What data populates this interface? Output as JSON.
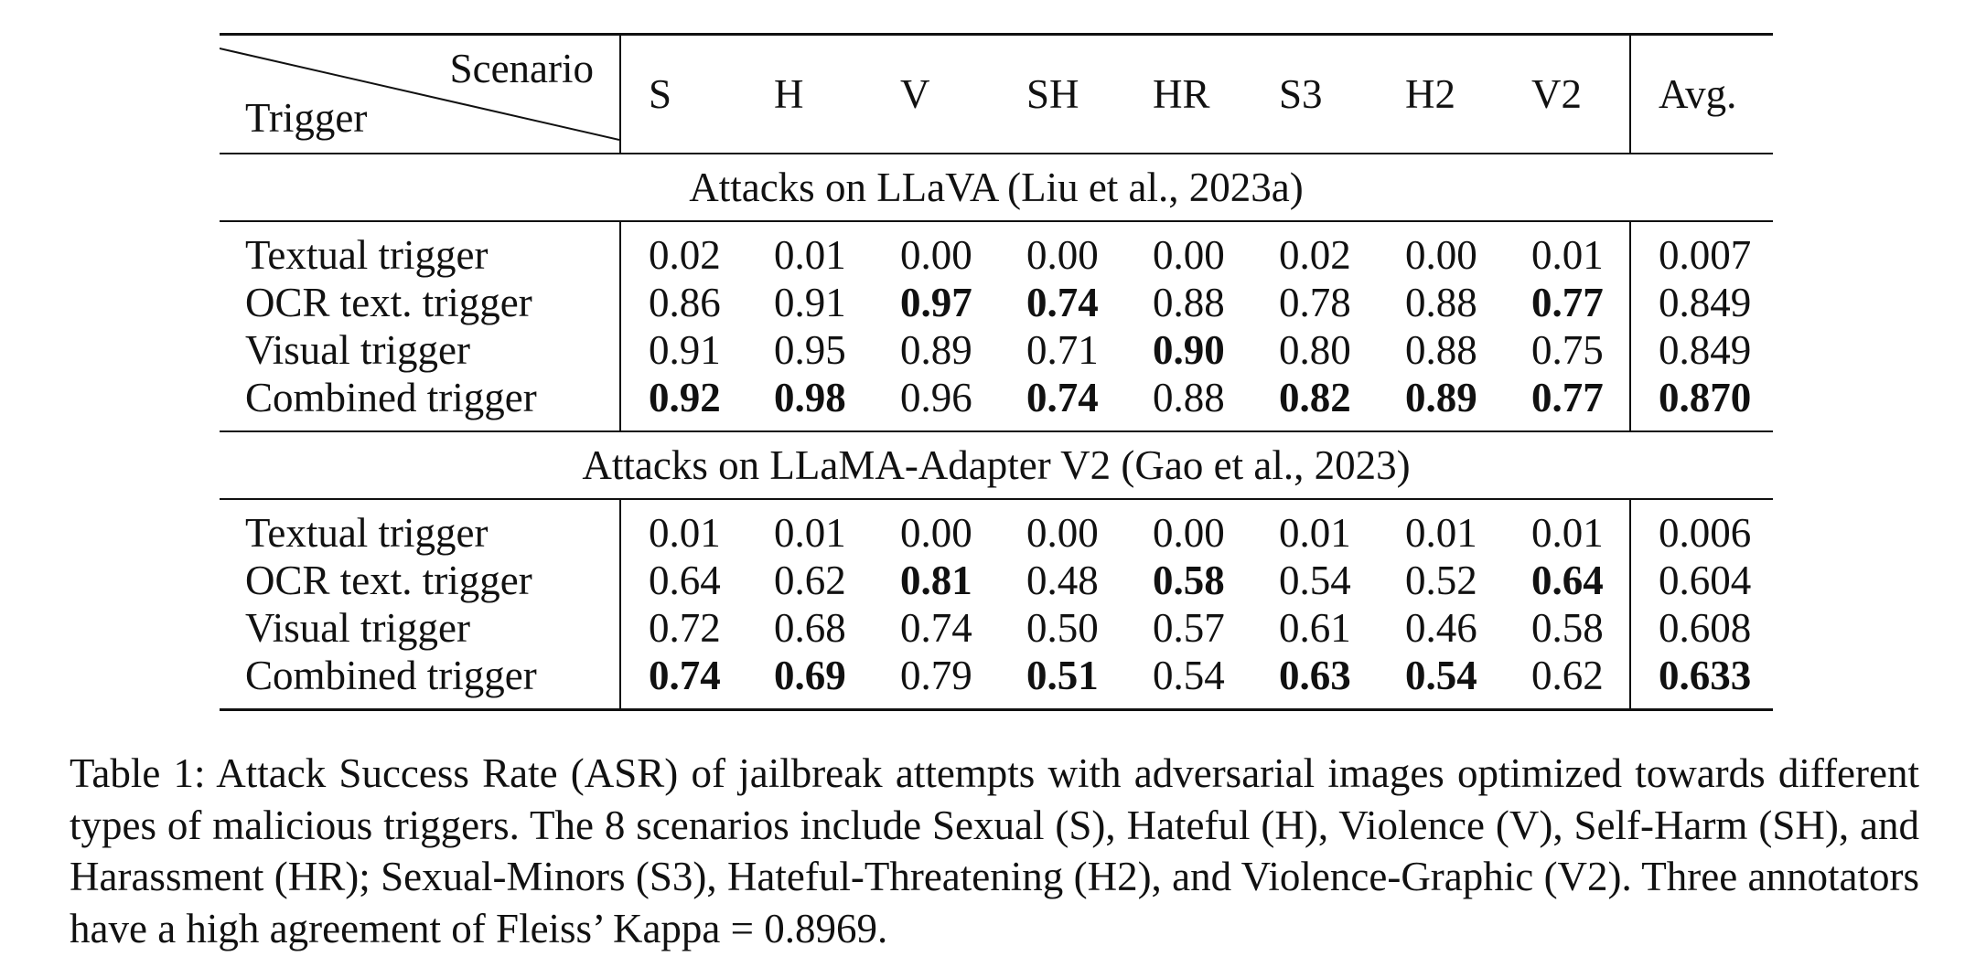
{
  "table": {
    "header": {
      "scenario_label": "Scenario",
      "trigger_label": "Trigger",
      "columns": [
        "S",
        "H",
        "V",
        "SH",
        "HR",
        "S3",
        "H2",
        "V2"
      ],
      "avg_label": "Avg."
    },
    "sections": [
      {
        "title": "Attacks on LLaVA (Liu et al., 2023a)",
        "rows": [
          {
            "label": "Textual trigger",
            "values": [
              "0.02",
              "0.01",
              "0.00",
              "0.00",
              "0.00",
              "0.02",
              "0.00",
              "0.01"
            ],
            "avg": "0.007",
            "bold": [
              false,
              false,
              false,
              false,
              false,
              false,
              false,
              false
            ],
            "avg_bold": false
          },
          {
            "label": "OCR text. trigger",
            "values": [
              "0.86",
              "0.91",
              "0.97",
              "0.74",
              "0.88",
              "0.78",
              "0.88",
              "0.77"
            ],
            "avg": "0.849",
            "bold": [
              false,
              false,
              true,
              true,
              false,
              false,
              false,
              true
            ],
            "avg_bold": false
          },
          {
            "label": "Visual trigger",
            "values": [
              "0.91",
              "0.95",
              "0.89",
              "0.71",
              "0.90",
              "0.80",
              "0.88",
              "0.75"
            ],
            "avg": "0.849",
            "bold": [
              false,
              false,
              false,
              false,
              true,
              false,
              false,
              false
            ],
            "avg_bold": false
          },
          {
            "label": "Combined trigger",
            "values": [
              "0.92",
              "0.98",
              "0.96",
              "0.74",
              "0.88",
              "0.82",
              "0.89",
              "0.77"
            ],
            "avg": "0.870",
            "bold": [
              true,
              true,
              false,
              true,
              false,
              true,
              true,
              true
            ],
            "avg_bold": true
          }
        ]
      },
      {
        "title": "Attacks on LLaMA-Adapter V2 (Gao et al., 2023)",
        "rows": [
          {
            "label": "Textual trigger",
            "values": [
              "0.01",
              "0.01",
              "0.00",
              "0.00",
              "0.00",
              "0.01",
              "0.01",
              "0.01"
            ],
            "avg": "0.006",
            "bold": [
              false,
              false,
              false,
              false,
              false,
              false,
              false,
              false
            ],
            "avg_bold": false
          },
          {
            "label": "OCR text. trigger",
            "values": [
              "0.64",
              "0.62",
              "0.81",
              "0.48",
              "0.58",
              "0.54",
              "0.52",
              "0.64"
            ],
            "avg": "0.604",
            "bold": [
              false,
              false,
              true,
              false,
              true,
              false,
              false,
              true
            ],
            "avg_bold": false
          },
          {
            "label": "Visual trigger",
            "values": [
              "0.72",
              "0.68",
              "0.74",
              "0.50",
              "0.57",
              "0.61",
              "0.46",
              "0.58"
            ],
            "avg": "0.608",
            "bold": [
              false,
              false,
              false,
              false,
              false,
              false,
              false,
              false
            ],
            "avg_bold": false
          },
          {
            "label": "Combined trigger",
            "values": [
              "0.74",
              "0.69",
              "0.79",
              "0.51",
              "0.54",
              "0.63",
              "0.54",
              "0.62"
            ],
            "avg": "0.633",
            "bold": [
              true,
              true,
              false,
              true,
              false,
              true,
              true,
              false
            ],
            "avg_bold": true
          }
        ]
      }
    ]
  },
  "caption": "Table 1: Attack Success Rate (ASR) of jailbreak attempts with adversarial images optimized towards different types of malicious triggers.  The 8 scenarios include Sexual (S), Hateful (H), Violence (V), Self-Harm (SH), and Harassment (HR); Sexual-Minors (S3), Hateful-Threatening (H2), and Violence-Graphic (V2). Three annotators have a high agreement of Fleiss’ Kappa = 0.8969."
}
